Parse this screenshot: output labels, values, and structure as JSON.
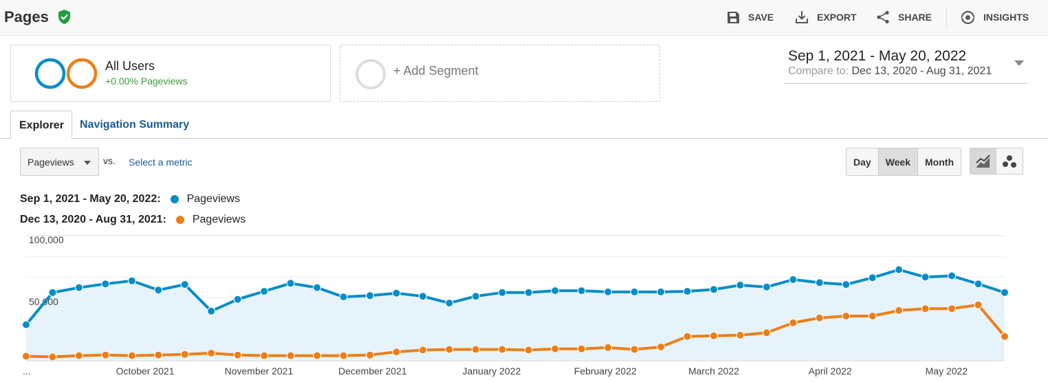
{
  "header": {
    "title": "Pages",
    "actions": [
      {
        "label": "SAVE",
        "icon": "save-icon"
      },
      {
        "label": "EXPORT",
        "icon": "export-icon"
      },
      {
        "label": "SHARE",
        "icon": "share-icon"
      },
      {
        "label": "INSIGHTS",
        "icon": "insights-icon"
      }
    ]
  },
  "segments": {
    "active": {
      "name": "All Users",
      "sub": "+0.00% Pageviews"
    },
    "add_label": "+ Add Segment"
  },
  "date_range": {
    "main": "Sep 1, 2021 - May 20, 2022",
    "compare_label": "Compare to:",
    "compare_range": "Dec 13, 2020 - Aug 31, 2021"
  },
  "tabs": [
    {
      "label": "Explorer",
      "active": true
    },
    {
      "label": "Navigation Summary",
      "active": false
    }
  ],
  "controls": {
    "metric": "Pageviews",
    "vs": "vs.",
    "select_metric": "Select a metric",
    "periods": [
      "Day",
      "Week",
      "Month"
    ],
    "active_period": "Week",
    "views": [
      "line-chart-icon",
      "motion-chart-icon"
    ]
  },
  "legend": [
    {
      "range": "Sep 1, 2021 - May 20, 2022:",
      "name": "Pageviews",
      "color": "#058dc7"
    },
    {
      "range": "Dec 13, 2020 - Aug 31, 2021:",
      "name": "Pageviews",
      "color": "#ed7e17"
    }
  ],
  "colors": {
    "primary": "#058dc7",
    "compare": "#ed7e17",
    "area_fill": "#e6f3fa",
    "verified": "#1e9e3e"
  },
  "chart_data": {
    "type": "line",
    "y_ticks": [
      "100,000",
      "50,000"
    ],
    "x_ticks": [
      "...",
      "October 2021",
      "November 2021",
      "December 2021",
      "January 2022",
      "February 2022",
      "March 2022",
      "April 2022",
      "May 2022"
    ],
    "ylim": [
      0,
      100000
    ],
    "grid": true,
    "series": [
      {
        "name": "Pageviews",
        "values": [
          28000,
          54000,
          58000,
          61000,
          63500,
          56000,
          60500,
          39000,
          48500,
          55000,
          61500,
          58000,
          50500,
          51500,
          53500,
          51000,
          45500,
          51000,
          54000,
          54000,
          55500,
          55500,
          54500,
          54500,
          54500,
          55000,
          56500,
          60000,
          58500,
          64500,
          62000,
          60500,
          66000,
          72500,
          66500,
          67500,
          61000,
          54000
        ]
      },
      {
        "name": "Pageviews",
        "values": [
          2500,
          2000,
          3000,
          3500,
          3000,
          3500,
          4000,
          5000,
          3500,
          3000,
          3000,
          3000,
          3000,
          3500,
          6000,
          7500,
          8000,
          8000,
          8000,
          7500,
          8500,
          8500,
          9500,
          8000,
          10000,
          18500,
          19000,
          19500,
          21500,
          29500,
          33500,
          35000,
          35000,
          39500,
          41000,
          41000,
          44000,
          18500
        ]
      }
    ]
  }
}
